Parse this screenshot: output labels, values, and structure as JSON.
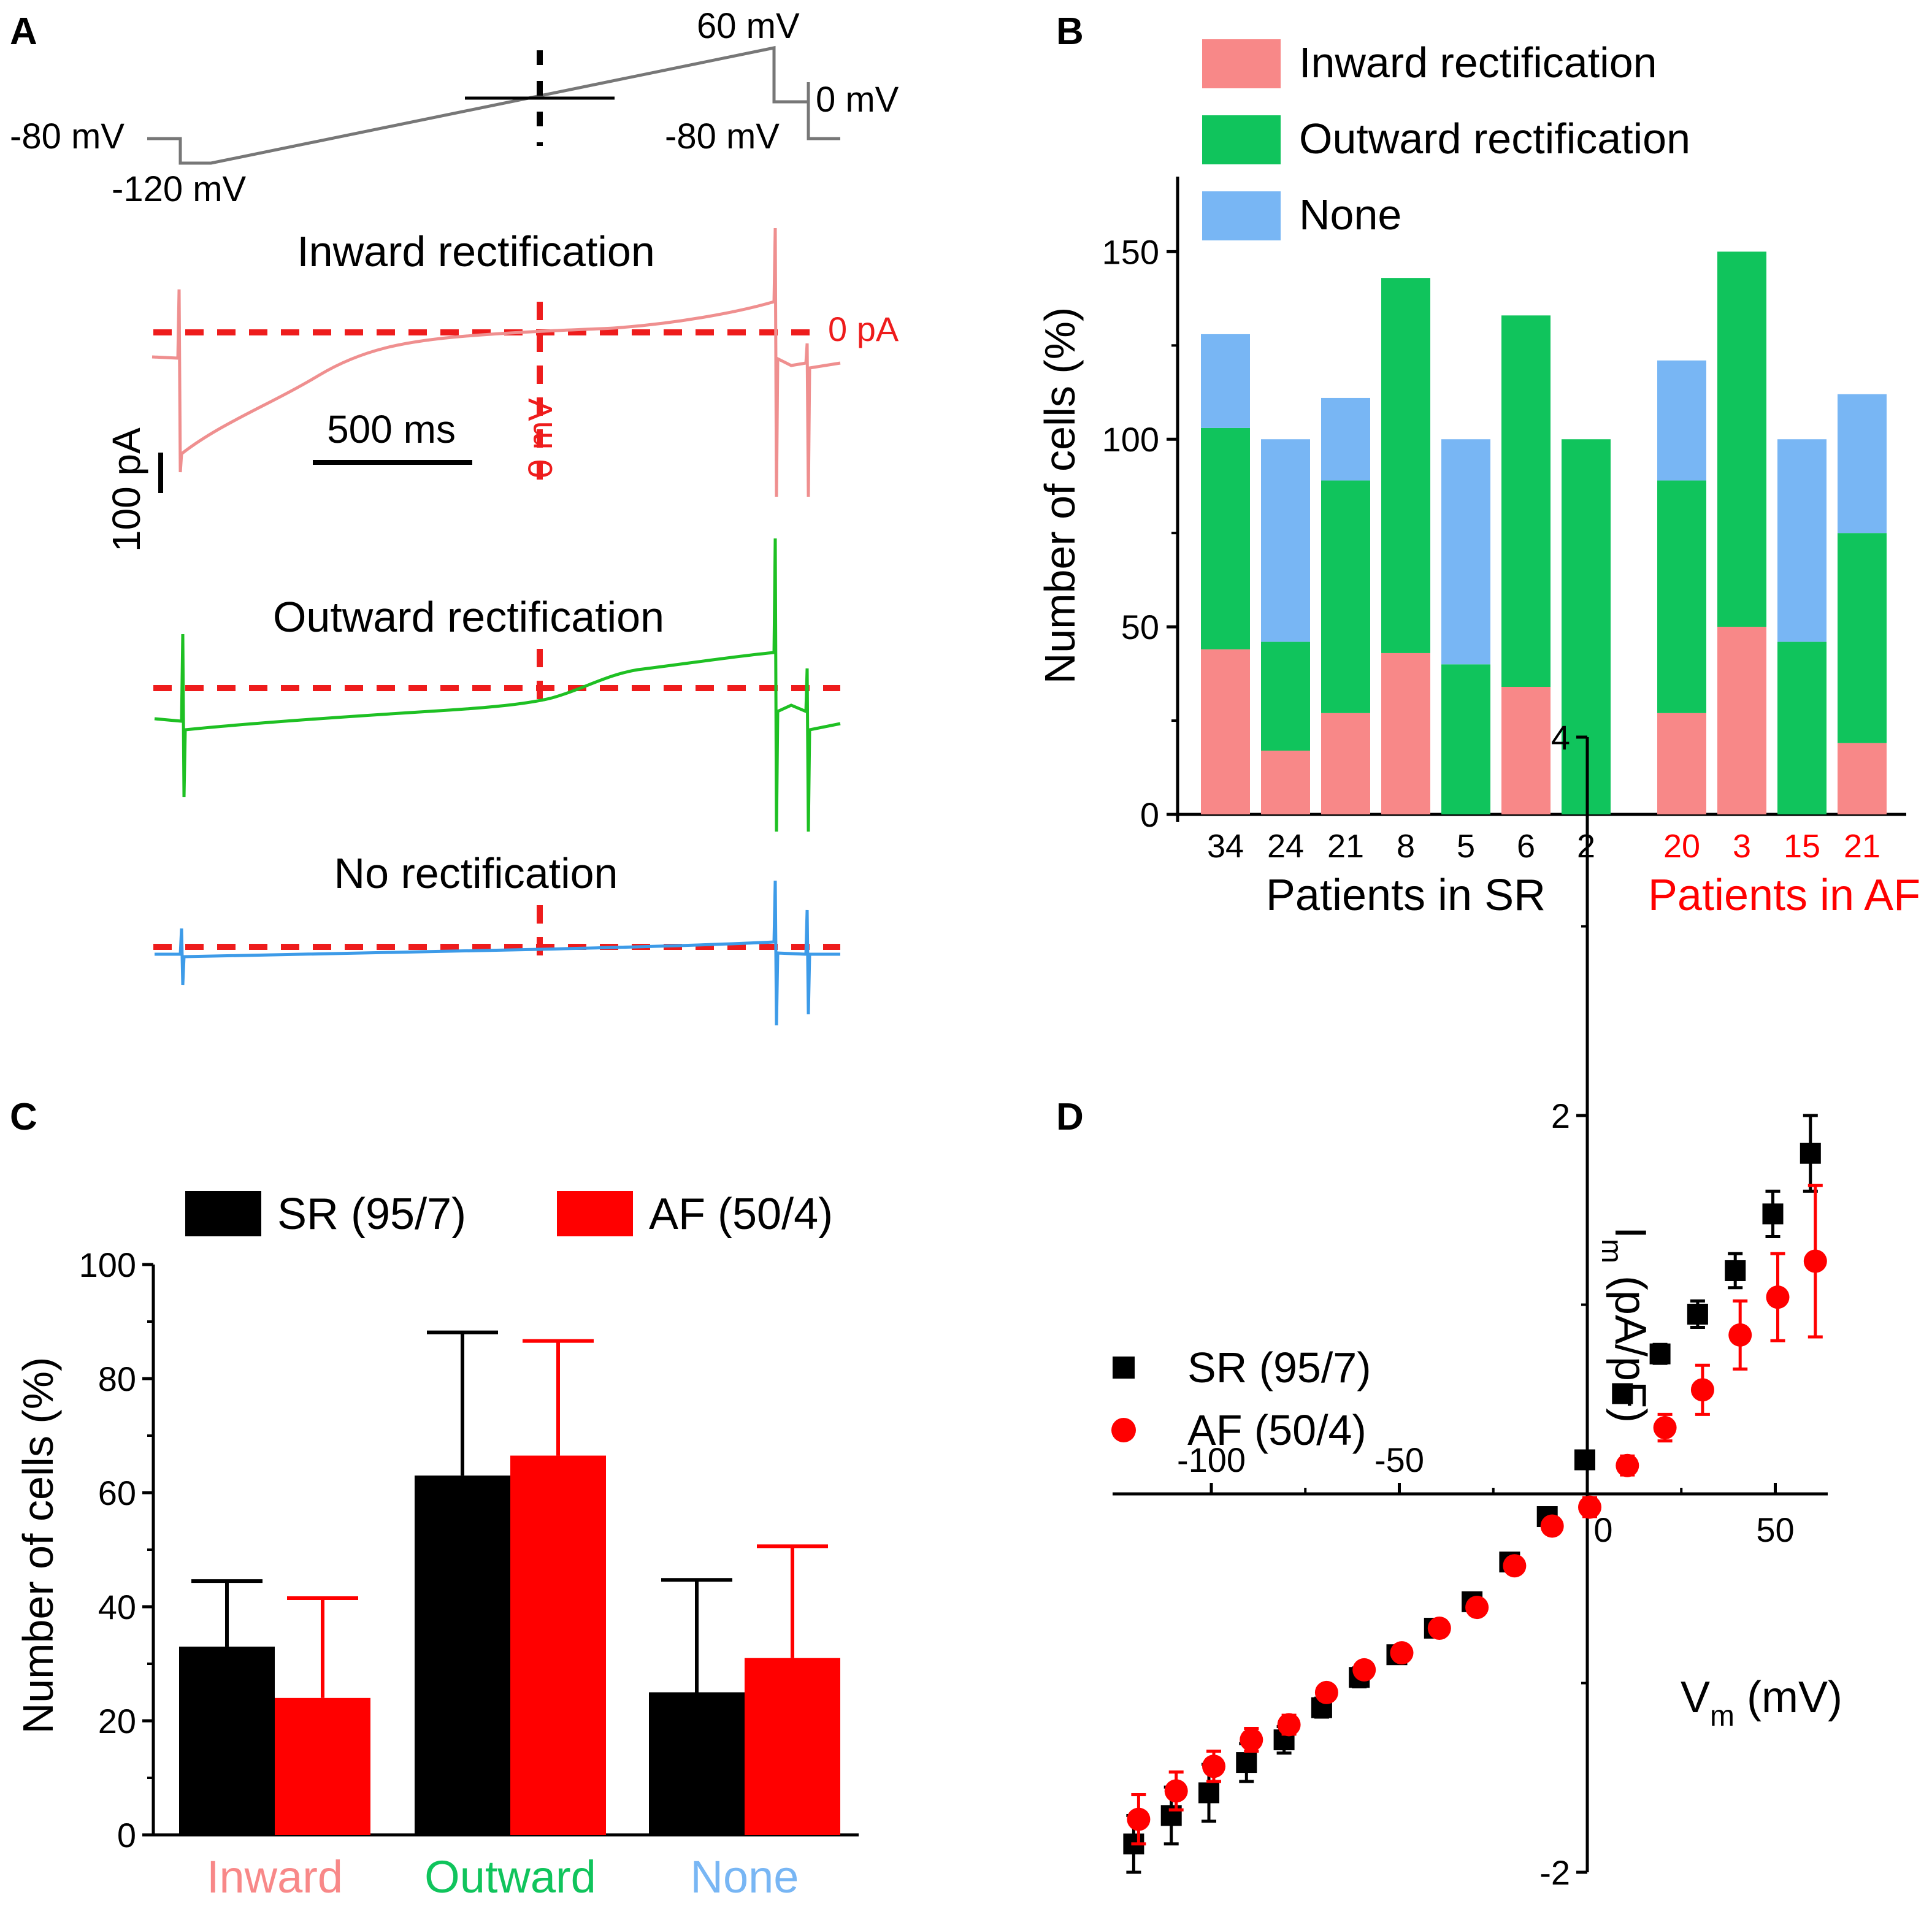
{
  "colors": {
    "inward": "#f88888",
    "outward": "#10c45c",
    "none": "#78b6f4",
    "sr": "#000000",
    "af": "#ff0000",
    "trace_inward": "#ef8f8f",
    "trace_outward": "#1ec023",
    "trace_none": "#3d9be8",
    "protocol": "#777777",
    "guide": "#ee1c1c"
  },
  "panels": {
    "a": "A",
    "b": "B",
    "c": "C",
    "d": "D"
  },
  "panelA": {
    "protocol": {
      "labels": [
        "60 mV",
        "0 mV",
        "-80 mV",
        "-80 mV",
        "-120 mV"
      ],
      "levels_mv": [
        -80,
        -120,
        60,
        -80,
        0
      ]
    },
    "traces": [
      {
        "name": "Inward rectification",
        "color_key": "trace_inward"
      },
      {
        "name": "Outward rectification",
        "color_key": "trace_outward"
      },
      {
        "name": "No rectification",
        "color_key": "trace_none"
      }
    ],
    "zero_current_label": "0 pA",
    "zero_voltage_label": "0 mV",
    "scale_time": "500 ms",
    "scale_current": "100 pA"
  },
  "chart_data": [
    {
      "panel": "B",
      "type": "bar",
      "stacked": true,
      "ylabel": "Number of cells (%)",
      "ylim": [
        0,
        170
      ],
      "yticks": [
        0,
        50,
        100,
        150
      ],
      "legend": [
        "Inward rectification",
        "Outward rectification",
        "None"
      ],
      "groups": [
        {
          "label": "Patients in SR",
          "color": "#000000",
          "categories": [
            "34",
            "24",
            "21",
            "8",
            "5",
            "6",
            "2"
          ]
        },
        {
          "label": "Patients in AF",
          "color": "#ff0000",
          "categories": [
            "20",
            "3",
            "15",
            "21"
          ]
        }
      ],
      "series": [
        {
          "name": "Inward rectification",
          "values": [
            44,
            17,
            27,
            43,
            0,
            34,
            0,
            27,
            50,
            0,
            19
          ]
        },
        {
          "name": "Outward rectification",
          "values": [
            59,
            29,
            62,
            100,
            40,
            99,
            100,
            62,
            100,
            46,
            56
          ]
        },
        {
          "name": "None",
          "values": [
            25,
            54,
            22,
            0,
            60,
            0,
            0,
            32,
            0,
            54,
            37
          ]
        }
      ]
    },
    {
      "panel": "C",
      "type": "bar",
      "ylabel": "Number of cells (%)",
      "ylim": [
        0,
        100
      ],
      "yticks": [
        0,
        20,
        40,
        60,
        80,
        100
      ],
      "categories": [
        "Inward",
        "Outward",
        "None"
      ],
      "category_colors": [
        "#f88888",
        "#10c45c",
        "#78b6f4"
      ],
      "series": [
        {
          "name": "SR (95/7)",
          "values": [
            33,
            63,
            25
          ],
          "errors": [
            11.5,
            25.1,
            19.7
          ]
        },
        {
          "name": "AF (50/4)",
          "values": [
            24,
            66.5,
            31
          ],
          "errors": [
            17.5,
            20.1,
            19.6
          ]
        }
      ]
    },
    {
      "panel": "D",
      "type": "scatter",
      "xlabel": "V",
      "xlabel_sub": "m",
      "xlabel_unit": " (mV)",
      "ylabel": "I",
      "ylabel_sub": "m",
      "ylabel_unit": " (pA/pF)",
      "xlim": [
        -125,
        65
      ],
      "ylim": [
        -2,
        4
      ],
      "xticks": [
        -100,
        -50,
        0,
        50
      ],
      "yticks": [
        -2,
        2,
        4
      ],
      "series": [
        {
          "name": "SR (95/7)",
          "marker": "square",
          "x": [
            -120,
            -110,
            -100,
            -90,
            -80,
            -70,
            -60,
            -50,
            -40,
            -30,
            -20,
            -10,
            0,
            10,
            20,
            30,
            40,
            50,
            60
          ],
          "y": [
            -1.85,
            -1.7,
            -1.58,
            -1.42,
            -1.3,
            -1.13,
            -0.97,
            -0.85,
            -0.71,
            -0.57,
            -0.36,
            -0.12,
            0.18,
            0.53,
            0.74,
            0.95,
            1.18,
            1.48,
            1.8
          ],
          "err": [
            0.15,
            0.15,
            0.15,
            0.1,
            0.07,
            0.05,
            0.05,
            0.04,
            0.04,
            0.04,
            0.03,
            0.03,
            0.03,
            0.04,
            0.05,
            0.07,
            0.09,
            0.12,
            0.2
          ]
        },
        {
          "name": "AF (50/4)",
          "marker": "circle",
          "x": [
            -120,
            -110,
            -100,
            -90,
            -80,
            -70,
            -60,
            -50,
            -40,
            -30,
            -20,
            -10,
            0,
            10,
            20,
            30,
            40,
            50,
            60
          ],
          "y": [
            -1.72,
            -1.57,
            -1.44,
            -1.3,
            -1.22,
            -1.05,
            -0.93,
            -0.84,
            -0.71,
            -0.6,
            -0.38,
            -0.17,
            -0.07,
            0.15,
            0.35,
            0.55,
            0.84,
            1.04,
            1.23
          ],
          "err": [
            0.13,
            0.1,
            0.08,
            0.06,
            0.05,
            0.04,
            0.04,
            0.04,
            0.04,
            0.04,
            0.04,
            0.04,
            0.05,
            0.05,
            0.07,
            0.13,
            0.18,
            0.23,
            0.4
          ]
        }
      ]
    }
  ]
}
